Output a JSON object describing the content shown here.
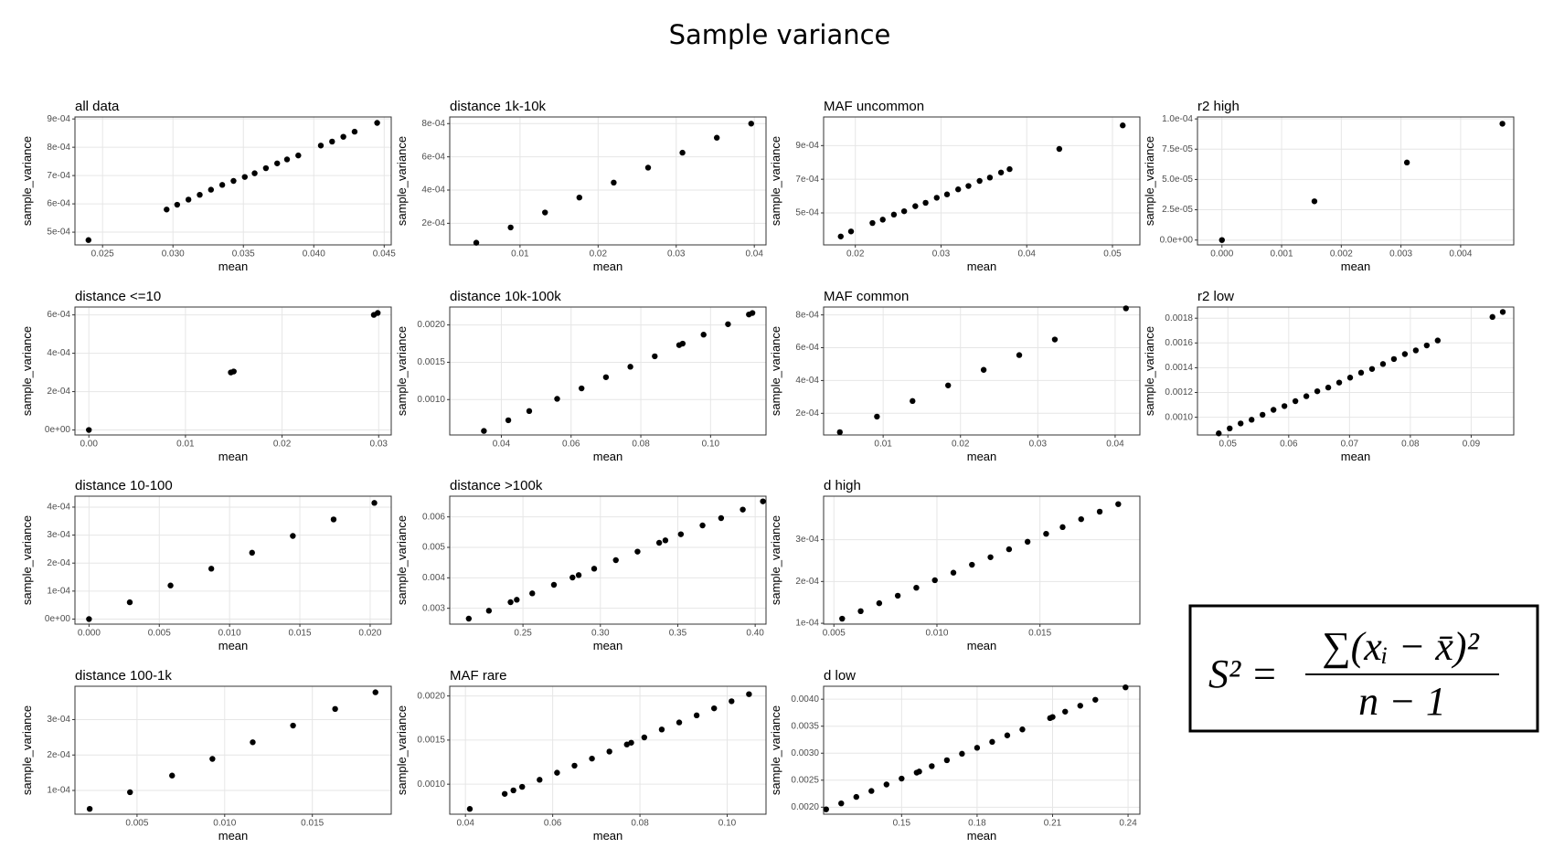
{
  "title": "Sample variance",
  "formula": {
    "lhs": "S² =",
    "numerator": "∑(xᵢ − x̄)²",
    "denominator": "n − 1"
  },
  "chart_data": [
    {
      "type": "scatter",
      "title": "all data",
      "x_label": "mean",
      "y_label": "sample_variance",
      "color": "#000000",
      "grid": true,
      "x": [
        0.024,
        0.02955,
        0.0303,
        0.0311,
        0.0319,
        0.0327,
        0.0335,
        0.0343,
        0.0351,
        0.0358,
        0.0366,
        0.0374,
        0.0381,
        0.0389,
        0.0405,
        0.0413,
        0.0421,
        0.0429,
        0.0445
      ],
      "values": [
        0.000472,
        0.00058,
        0.000597,
        0.000615,
        0.000632,
        0.00065,
        0.000667,
        0.000681,
        0.000695,
        0.000708,
        0.000726,
        0.000743,
        0.000757,
        0.000771,
        0.000806,
        0.00082,
        0.000837,
        0.000855,
        0.000886
      ],
      "xlim": [
        0.02304,
        0.0455
      ],
      "ylim": [
        0.000455,
        0.000907
      ],
      "xticks": [
        0.025,
        {
          "value": 0.03,
          "label": "0.030"
        },
        0.035,
        {
          "value": 0.04,
          "label": "0.040"
        },
        0.045
      ],
      "yticks": [
        {
          "value": 0.0005,
          "label": "5e-04"
        },
        {
          "value": 0.0006,
          "label": "6e-04"
        },
        {
          "value": 0.0007,
          "label": "7e-04"
        },
        {
          "value": 0.0008,
          "label": "8e-04"
        },
        {
          "value": 0.0009,
          "label": "9e-04"
        }
      ]
    },
    {
      "type": "scatter",
      "title": "distance 1k-10k",
      "x_label": "mean",
      "y_label": "sample_variance",
      "color": "#000000",
      "grid": true,
      "x": [
        0.0044,
        0.0088,
        0.0132,
        0.0176,
        0.022,
        0.0264,
        0.0308,
        0.0352,
        0.0396
      ],
      "values": [
        8.3e-05,
        0.000175,
        0.000265,
        0.000355,
        0.000445,
        0.000535,
        0.000625,
        0.000715,
        0.0008
      ],
      "xlim": [
        0.001,
        0.0415
      ],
      "ylim": [
        7e-05,
        0.00084
      ],
      "xticks": [
        0.01,
        0.02,
        0.03,
        0.04
      ],
      "yticks": [
        {
          "value": 0.0002,
          "label": "2e-04"
        },
        {
          "value": 0.0004,
          "label": "4e-04"
        },
        {
          "value": 0.0006,
          "label": "6e-04"
        },
        {
          "value": 0.0008,
          "label": "8e-04"
        }
      ]
    },
    {
      "type": "scatter",
      "title": "MAF uncommon",
      "x_label": "mean",
      "y_label": "sample_variance",
      "color": "#000000",
      "grid": true,
      "x": [
        0.0183,
        0.0195,
        0.022,
        0.0232,
        0.0245,
        0.0257,
        0.027,
        0.0282,
        0.0295,
        0.0307,
        0.032,
        0.0332,
        0.0345,
        0.0357,
        0.037,
        0.038,
        0.0438,
        0.0512
      ],
      "values": [
        0.00036,
        0.00039,
        0.00044,
        0.00046,
        0.00049,
        0.00051,
        0.00054,
        0.00056,
        0.00059,
        0.00061,
        0.00064,
        0.00066,
        0.00069,
        0.00071,
        0.00074,
        0.00076,
        0.00088,
        0.00102
      ],
      "xlim": [
        0.0163,
        0.0532
      ],
      "ylim": [
        0.00031,
        0.00107
      ],
      "xticks": [
        0.02,
        0.03,
        0.04,
        0.05
      ],
      "yticks": [
        {
          "value": 0.0005,
          "label": "5e-04"
        },
        {
          "value": 0.0007,
          "label": "7e-04"
        },
        {
          "value": 0.0009,
          "label": "9e-04"
        }
      ]
    },
    {
      "type": "scatter",
      "title": "r2 high",
      "x_label": "mean",
      "y_label": "sample_variance",
      "color": "#000000",
      "grid": true,
      "x": [
        0,
        0.00155,
        0.0031,
        0.0047
      ],
      "values": [
        0,
        3.2e-05,
        6.4e-05,
        9.6e-05
      ],
      "xlim": [
        -0.00041,
        0.00489
      ],
      "ylim": [
        -4e-06,
        0.0001016
      ],
      "xticks": [
        {
          "value": 0,
          "label": "0.000"
        },
        0.001,
        0.002,
        0.003,
        0.004
      ],
      "yticks": [
        {
          "value": 0,
          "label": "0.0e+00"
        },
        {
          "value": 2.5e-05,
          "label": "2.5e-05"
        },
        {
          "value": 5e-05,
          "label": "5.0e-05"
        },
        {
          "value": 7.5e-05,
          "label": "7.5e-05"
        },
        {
          "value": 0.0001,
          "label": "1.0e-04"
        }
      ]
    },
    {
      "type": "scatter",
      "title": "distance <=10",
      "x_label": "mean",
      "y_label": "sample_variance",
      "color": "#000000",
      "grid": true,
      "x": [
        0,
        0.0147,
        0.015,
        0.0295,
        0.0299
      ],
      "values": [
        0,
        0.0003,
        0.000305,
        0.0006,
        0.00061
      ],
      "xlim": [
        -0.00144,
        0.0313
      ],
      "ylim": [
        -2.6e-05,
        0.000641
      ],
      "xticks": [
        {
          "value": 0,
          "label": "0.00"
        },
        0.01,
        0.02,
        0.03
      ],
      "yticks": [
        {
          "value": 0,
          "label": "0e+00"
        },
        {
          "value": 0.0002,
          "label": "2e-04"
        },
        {
          "value": 0.0004,
          "label": "4e-04"
        },
        {
          "value": 0.0006,
          "label": "6e-04"
        }
      ]
    },
    {
      "type": "scatter",
      "title": "distance 10k-100k",
      "x_label": "mean",
      "y_label": "sample_variance",
      "color": "#000000",
      "grid": true,
      "x": [
        0.035,
        0.042,
        0.048,
        0.056,
        0.063,
        0.07,
        0.077,
        0.084,
        0.091,
        0.092,
        0.098,
        0.105,
        0.111,
        0.112
      ],
      "values": [
        0.00058,
        0.000723,
        0.000846,
        0.00101,
        0.00115,
        0.0013,
        0.00144,
        0.00158,
        0.00173,
        0.00175,
        0.00187,
        0.00201,
        0.00214,
        0.00216
      ],
      "xlim": [
        0.0252,
        0.1159
      ],
      "ylim": [
        0.000526,
        0.00224
      ],
      "xticks": [
        0.04,
        0.06,
        0.08,
        {
          "value": 0.1,
          "label": "0.10"
        }
      ],
      "yticks": [
        {
          "value": 0.001,
          "label": "0.0010"
        },
        {
          "value": 0.0015,
          "label": "0.0015"
        },
        {
          "value": 0.002,
          "label": "0.0020"
        }
      ]
    },
    {
      "type": "scatter",
      "title": "MAF common",
      "x_label": "mean",
      "y_label": "sample_variance",
      "color": "#000000",
      "grid": true,
      "x": [
        0.0044,
        0.0092,
        0.0138,
        0.0184,
        0.023,
        0.0276,
        0.0322,
        0.0414
      ],
      "values": [
        8.5e-05,
        0.00018,
        0.000275,
        0.00037,
        0.000465,
        0.000555,
        0.00065,
        0.00084
      ],
      "xlim": [
        0.0023,
        0.0432
      ],
      "ylim": [
        6.8e-05,
        0.000848
      ],
      "xticks": [
        0.01,
        0.02,
        0.03,
        0.04
      ],
      "yticks": [
        {
          "value": 0.0002,
          "label": "2e-04"
        },
        {
          "value": 0.0004,
          "label": "4e-04"
        },
        {
          "value": 0.0006,
          "label": "6e-04"
        },
        {
          "value": 0.0008,
          "label": "8e-04"
        }
      ]
    },
    {
      "type": "scatter",
      "title": "r2 low",
      "x_label": "mean",
      "y_label": "sample_variance",
      "color": "#000000",
      "grid": true,
      "x": [
        0.0485,
        0.0503,
        0.0521,
        0.0539,
        0.0557,
        0.0575,
        0.0593,
        0.0611,
        0.0629,
        0.0647,
        0.0665,
        0.0683,
        0.0701,
        0.0719,
        0.0737,
        0.0755,
        0.0773,
        0.0791,
        0.0809,
        0.0827,
        0.0845,
        0.0935,
        0.0952
      ],
      "values": [
        0.00087,
        0.00091,
        0.00095,
        0.00098,
        0.00102,
        0.00106,
        0.00109,
        0.00113,
        0.00117,
        0.00121,
        0.00124,
        0.00128,
        0.00132,
        0.00136,
        0.00139,
        0.00143,
        0.00147,
        0.00151,
        0.00154,
        0.00158,
        0.00162,
        0.00181,
        0.00185
      ],
      "xlim": [
        0.045,
        0.097
      ],
      "ylim": [
        0.000857,
        0.00189
      ],
      "xticks": [
        0.05,
        0.06,
        0.07,
        0.08,
        0.09
      ],
      "yticks": [
        {
          "value": 0.001,
          "label": "0.0010"
        },
        {
          "value": 0.0012,
          "label": "0.0012"
        },
        {
          "value": 0.0014,
          "label": "0.0014"
        },
        {
          "value": 0.0016,
          "label": "0.0016"
        },
        {
          "value": 0.0018,
          "label": "0.0018"
        }
      ]
    },
    {
      "type": "scatter",
      "title": "distance 10-100",
      "x_label": "mean",
      "y_label": "sample_variance",
      "color": "#000000",
      "grid": true,
      "x": [
        0,
        0.0029,
        0.0058,
        0.0087,
        0.0116,
        0.0145,
        0.0174,
        0.0203
      ],
      "values": [
        0,
        6e-05,
        0.00012,
        0.00018,
        0.000237,
        0.000297,
        0.000356,
        0.000415
      ],
      "xlim": [
        -0.001,
        0.0215
      ],
      "ylim": [
        -1.8e-05,
        0.000439
      ],
      "xticks": [
        {
          "value": 0,
          "label": "0.000"
        },
        0.005,
        {
          "value": 0.01,
          "label": "0.010"
        },
        0.015,
        {
          "value": 0.02,
          "label": "0.020"
        }
      ],
      "yticks": [
        {
          "value": 0,
          "label": "0e+00"
        },
        {
          "value": 0.0001,
          "label": "1e-04"
        },
        {
          "value": 0.0002,
          "label": "2e-04"
        },
        {
          "value": 0.0003,
          "label": "3e-04"
        },
        {
          "value": 0.0004,
          "label": "4e-04"
        }
      ]
    },
    {
      "type": "scatter",
      "title": "distance >100k",
      "x_label": "mean",
      "y_label": "sample_variance",
      "color": "#000000",
      "grid": true,
      "x": [
        0.215,
        0.228,
        0.242,
        0.246,
        0.256,
        0.27,
        0.282,
        0.286,
        0.296,
        0.31,
        0.324,
        0.338,
        0.342,
        0.352,
        0.366,
        0.378,
        0.392,
        0.405
      ],
      "values": [
        0.00266,
        0.00292,
        0.0032,
        0.00328,
        0.00349,
        0.00377,
        0.00401,
        0.00409,
        0.0043,
        0.00458,
        0.00486,
        0.00515,
        0.00523,
        0.00543,
        0.00572,
        0.00596,
        0.00624,
        0.00651
      ],
      "xlim": [
        0.2027,
        0.407
      ],
      "ylim": [
        0.00248,
        0.00668
      ],
      "xticks": [
        0.25,
        {
          "value": 0.3,
          "label": "0.30"
        },
        0.35,
        {
          "value": 0.4,
          "label": "0.40"
        }
      ],
      "yticks": [
        0.003,
        0.004,
        0.005,
        0.006
      ]
    },
    {
      "type": "scatter",
      "title": "d high",
      "x_label": "mean",
      "y_label": "sample_variance",
      "color": "#000000",
      "grid": true,
      "x": [
        0.0054,
        0.0063,
        0.0072,
        0.0081,
        0.009,
        0.0099,
        0.0108,
        0.0117,
        0.0126,
        0.0135,
        0.0144,
        0.0153,
        0.0161,
        0.017,
        0.0179,
        0.0188
      ],
      "values": [
        0.000111,
        0.000129,
        0.000148,
        0.000166,
        0.000185,
        0.000203,
        0.000221,
        0.00024,
        0.000258,
        0.000277,
        0.000295,
        0.000314,
        0.00033,
        0.000349,
        0.000367,
        0.000385
      ],
      "xlim": [
        0.0045,
        0.01985
      ],
      "ylim": [
        9.8e-05,
        0.000404
      ],
      "xticks": [
        0.005,
        {
          "value": 0.01,
          "label": "0.010"
        },
        0.015
      ],
      "yticks": [
        {
          "value": 0.0001,
          "label": "1e-04"
        },
        {
          "value": 0.0002,
          "label": "2e-04"
        },
        {
          "value": 0.0003,
          "label": "3e-04"
        }
      ]
    },
    {
      "type": "scatter",
      "title": "distance 100-1k",
      "x_label": "mean",
      "y_label": "sample_variance",
      "color": "#000000",
      "grid": true,
      "x": [
        0.0023,
        0.0046,
        0.007,
        0.0093,
        0.0116,
        0.0139,
        0.0163,
        0.0186
      ],
      "values": [
        4.8e-05,
        9.5e-05,
        0.000142,
        0.000189,
        0.000236,
        0.000283,
        0.00033,
        0.000377
      ],
      "xlim": [
        0.00146,
        0.0195
      ],
      "ylim": [
        3.3e-05,
        0.000394
      ],
      "xticks": [
        0.005,
        {
          "value": 0.01,
          "label": "0.010"
        },
        0.015
      ],
      "yticks": [
        {
          "value": 0.0001,
          "label": "1e-04"
        },
        {
          "value": 0.0002,
          "label": "2e-04"
        },
        {
          "value": 0.0003,
          "label": "3e-04"
        }
      ]
    },
    {
      "type": "scatter",
      "title": "MAF rare",
      "x_label": "mean",
      "y_label": "sample_variance",
      "color": "#000000",
      "grid": true,
      "x": [
        0.041,
        0.049,
        0.051,
        0.053,
        0.057,
        0.061,
        0.065,
        0.069,
        0.073,
        0.077,
        0.078,
        0.081,
        0.085,
        0.089,
        0.093,
        0.097,
        0.101,
        0.105
      ],
      "values": [
        0.00072,
        0.00089,
        0.00093,
        0.00097,
        0.00105,
        0.00113,
        0.00121,
        0.00129,
        0.00137,
        0.00145,
        0.00147,
        0.00153,
        0.00162,
        0.0017,
        0.00178,
        0.00186,
        0.00194,
        0.00202
      ],
      "xlim": [
        0.0364,
        0.1089
      ],
      "ylim": [
        0.00066,
        0.00211
      ],
      "xticks": [
        0.04,
        0.06,
        0.08,
        {
          "value": 0.1,
          "label": "0.10"
        }
      ],
      "yticks": [
        {
          "value": 0.001,
          "label": "0.0010"
        },
        {
          "value": 0.0015,
          "label": "0.0015"
        },
        {
          "value": 0.002,
          "label": "0.0020"
        }
      ]
    },
    {
      "type": "scatter",
      "title": "d low",
      "x_label": "mean",
      "y_label": "sample_variance",
      "color": "#000000",
      "grid": true,
      "x": [
        0.12,
        0.126,
        0.132,
        0.138,
        0.144,
        0.15,
        0.156,
        0.157,
        0.162,
        0.168,
        0.174,
        0.18,
        0.186,
        0.192,
        0.198,
        0.209,
        0.21,
        0.215,
        0.221,
        0.227,
        0.239
      ],
      "values": [
        0.00196,
        0.00207,
        0.00219,
        0.0023,
        0.00242,
        0.00253,
        0.00264,
        0.00266,
        0.00276,
        0.00287,
        0.00299,
        0.0031,
        0.00321,
        0.00333,
        0.00344,
        0.00365,
        0.00367,
        0.00377,
        0.00388,
        0.00399,
        0.00422
      ],
      "xlim": [
        0.119,
        0.2447
      ],
      "ylim": [
        0.00187,
        0.00424
      ],
      "xticks": [
        0.15,
        0.18,
        0.21,
        0.24
      ],
      "yticks": [
        {
          "value": 0.002,
          "label": "0.0020"
        },
        {
          "value": 0.0025,
          "label": "0.0025"
        },
        {
          "value": 0.003,
          "label": "0.0030"
        },
        {
          "value": 0.0035,
          "label": "0.0035"
        },
        {
          "value": 0.004,
          "label": "0.0040"
        }
      ]
    }
  ]
}
